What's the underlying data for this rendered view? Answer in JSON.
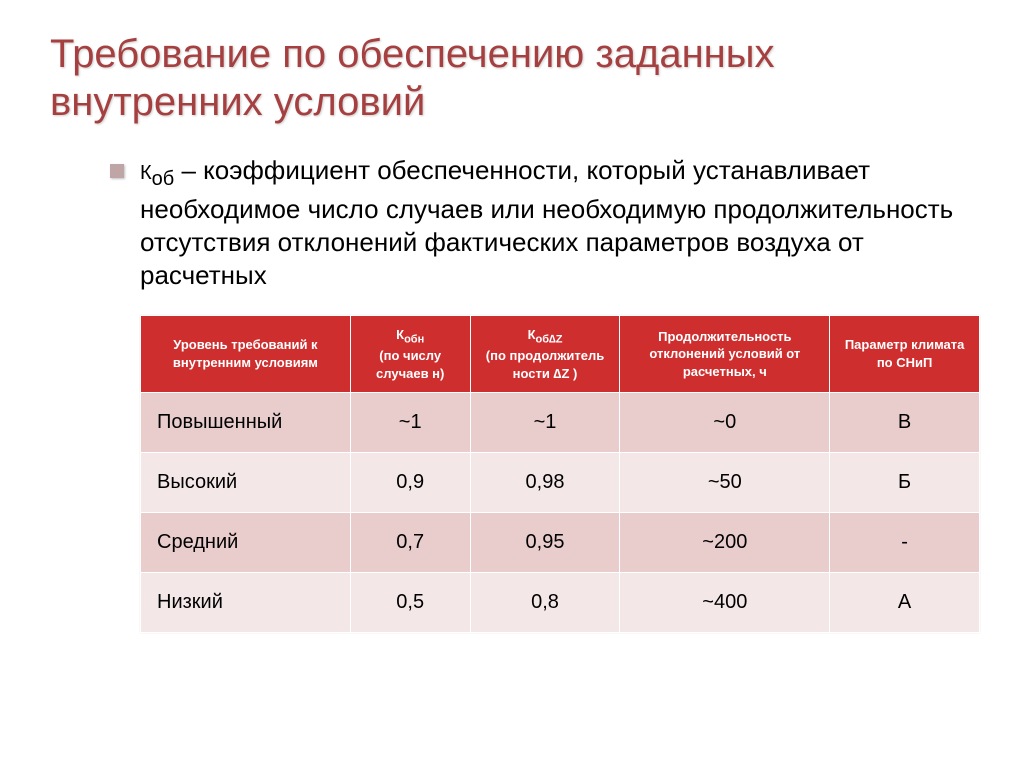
{
  "title": "Требование по обеспечению заданных внутренних условий",
  "bullet": {
    "prefix": "К",
    "sub": "об",
    "body": " – коэффициент обеспеченности, который устанавливает необходимое число случаев или необходимую продолжительность отсутствия отклонений фактических параметров воздуха от расчетных"
  },
  "table": {
    "type": "table",
    "header_bg": "#ce2e2e",
    "header_fg": "#ffffff",
    "row_colors": [
      "#e9cccc",
      "#f4e7e7"
    ],
    "columns": [
      {
        "label": "Уровень требований к внутренним условиям"
      },
      {
        "prefix": "К",
        "sub": "обн",
        "suffix": "(по числу случаев н)"
      },
      {
        "prefix": "К",
        "sub": "об∆Z",
        "suffix": "(по продолжитель ности ∆Z )"
      },
      {
        "label": "Продолжительность отклонений условий от расчетных, ч"
      },
      {
        "label": "Параметр климата по СНиП"
      }
    ],
    "rows": [
      [
        "Повышенный",
        "~1",
        "~1",
        "~0",
        "В"
      ],
      [
        "Высокий",
        "0,9",
        "0,98",
        "~50",
        "Б"
      ],
      [
        "Средний",
        "0,7",
        "0,95",
        "~200",
        "-"
      ],
      [
        "Низкий",
        "0,5",
        "0,8",
        "~400",
        "А"
      ]
    ]
  }
}
